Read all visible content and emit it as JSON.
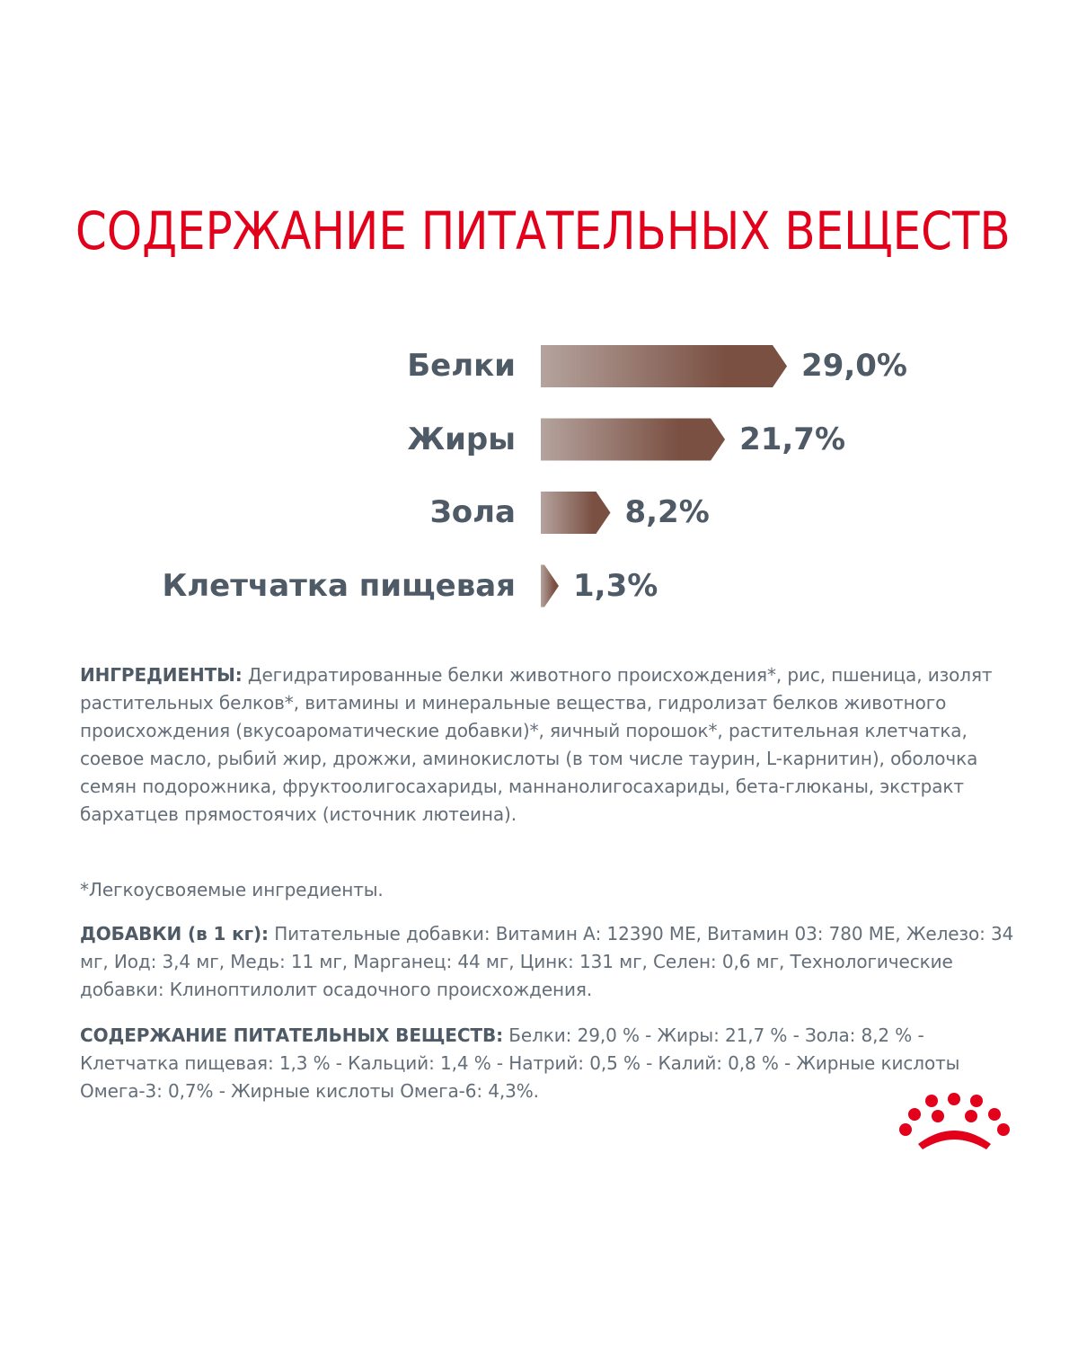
{
  "title": "СОДЕРЖАНИЕ ПИТАТЕЛЬНЫХ ВЕЩЕСТВ",
  "colors": {
    "title": "#E2001A",
    "label": "#4E5A65",
    "body": "#646E78",
    "bar_start": "#B5A39E",
    "bar_end": "#7A5042",
    "crown": "#E2001A"
  },
  "chart_data": {
    "type": "bar",
    "orientation": "horizontal",
    "categories": [
      "Белки",
      "Жиры",
      "Зола",
      "Клетчатка пищевая"
    ],
    "values": [
      29.0,
      21.7,
      8.2,
      1.3
    ],
    "value_labels": [
      "29,0%",
      "21,7%",
      "8,2%",
      "1,3%"
    ],
    "unit": "%"
  },
  "ingredients": {
    "label": "ИНГРЕДИЕНТЫ:",
    "text": " Дегидратированные белки животного происхождения*, рис, пшеница, изолят растительных белков*, витамины и минеральные вещества, гидролизат белков животного происхождения (вкусоароматические добавки)*, яичный порошок*, растительная клетчатка, соевое масло, рыбий жир, дрожжи, аминокислоты (в том числе таурин, L-карнитин), оболочка семян подорожника, фруктоолигосахариды, маннанолигосахариды, бета-глюканы, экстракт бархатцев прямостоячих (источник лютеина)."
  },
  "footnote": "*Легкоусвояемые ингредиенты.",
  "additives": {
    "label": "ДОБАВКИ (в 1 кг):",
    "text": " Питательные добавки: Витамин А: 12390 МЕ, Витамин 03: 780 МЕ, Железо: 34 мг, Иод: 3,4 мг, Медь: 11 мг, Марганец: 44 мг, Цинк: 131 мг, Селен: 0,6 мг, Технологические добавки: Клиноптилолит осадочного происхождения."
  },
  "nutrients": {
    "label": "СОДЕРЖАНИЕ ПИТАТЕЛЬНЫХ ВЕЩЕСТВ:",
    "text": " Белки: 29,0 % - Жиры: 21,7 % - Зола: 8,2 % - Клетчатка пищевая: 1,3 % - Кальций: 1,4 % - Натрий: 0,5 % - Калий: 0,8 % - Жирные кислоты Омега-3: 0,7% - Жирные кислоты Омега-6: 4,3%."
  },
  "logo_icon": "royal-canin-crown-icon"
}
